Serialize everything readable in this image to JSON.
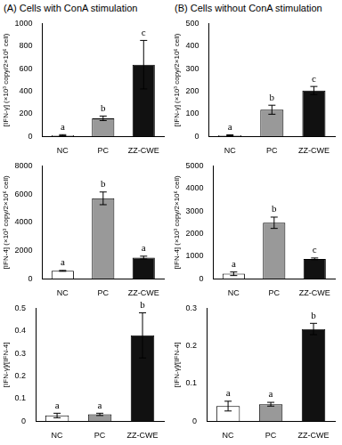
{
  "chart_data": [
    {
      "type": "bar",
      "title": "(A) Cells with ConA stimulation",
      "y_label": "[IFN-γ] (×10³ copy/2×10⁶ cell)",
      "categories": [
        "NC",
        "PC",
        "ZZ-CWE"
      ],
      "values": [
        10,
        160,
        635
      ],
      "errors": [
        5,
        20,
        215
      ],
      "significance_letters": [
        "a",
        "b",
        "c"
      ],
      "colors": [
        "#ffffff",
        "#999999",
        "#111111"
      ],
      "ylim": [
        0,
        1000
      ],
      "yticks": [
        0,
        200,
        400,
        600,
        800,
        1000
      ],
      "grid": false
    },
    {
      "type": "bar",
      "y_label": "[IFN-4] (×10³ copy/2×10⁶ cell)",
      "categories": [
        "NC",
        "PC",
        "ZZ-CWE"
      ],
      "values": [
        560,
        5700,
        1500
      ],
      "errors": [
        30,
        450,
        100
      ],
      "significance_letters": [
        "a",
        "b",
        "a"
      ],
      "colors": [
        "#ffffff",
        "#999999",
        "#111111"
      ],
      "ylim": [
        0,
        8000
      ],
      "yticks": [
        0,
        2000,
        4000,
        6000,
        8000
      ],
      "grid": false
    },
    {
      "type": "bar",
      "y_label": "[IFN-γ]/[IFN-4]",
      "categories": [
        "NC",
        "PC",
        "ZZ-CWE"
      ],
      "values": [
        0.025,
        0.03,
        0.38
      ],
      "errors": [
        0.01,
        0.005,
        0.1
      ],
      "significance_letters": [
        "a",
        "a",
        "b"
      ],
      "colors": [
        "#ffffff",
        "#999999",
        "#111111"
      ],
      "ylim": [
        0,
        0.5
      ],
      "yticks": [
        0,
        0.1,
        0.2,
        0.3,
        0.4,
        0.5
      ],
      "grid": false
    },
    {
      "type": "bar",
      "title": "(B) Cells without ConA stimulation",
      "y_label": "[IFN-γ] (×10³ copy/2×10⁶ cell)",
      "categories": [
        "NC",
        "PC",
        "ZZ-CWE"
      ],
      "values": [
        5,
        118,
        203
      ],
      "errors": [
        2,
        20,
        18
      ],
      "significance_letters": [
        "a",
        "b",
        "c"
      ],
      "colors": [
        "#ffffff",
        "#999999",
        "#111111"
      ],
      "ylim": [
        0,
        500
      ],
      "yticks": [
        0,
        100,
        200,
        300,
        400,
        500
      ],
      "grid": false
    },
    {
      "type": "bar",
      "y_label": "[IFN-4] (×10³ copy/2×10⁶ cell)",
      "categories": [
        "NC",
        "PC",
        "ZZ-CWE"
      ],
      "values": [
        220,
        2480,
        880
      ],
      "errors": [
        80,
        250,
        40
      ],
      "significance_letters": [
        "a",
        "b",
        "c"
      ],
      "colors": [
        "#ffffff",
        "#999999",
        "#111111"
      ],
      "ylim": [
        0,
        5000
      ],
      "yticks": [
        0,
        1000,
        2000,
        3000,
        4000,
        5000
      ],
      "grid": false
    },
    {
      "type": "bar",
      "y_label": "[IFN-γ]/[IFN-4]",
      "categories": [
        "NC",
        "PC",
        "ZZ-CWE"
      ],
      "values": [
        0.04,
        0.045,
        0.245
      ],
      "errors": [
        0.013,
        0.005,
        0.015
      ],
      "significance_letters": [
        "a",
        "a",
        "b"
      ],
      "colors": [
        "#ffffff",
        "#999999",
        "#111111"
      ],
      "ylim": [
        0,
        0.3
      ],
      "yticks": [
        0,
        0.1,
        0.2,
        0.3
      ],
      "grid": false
    }
  ]
}
